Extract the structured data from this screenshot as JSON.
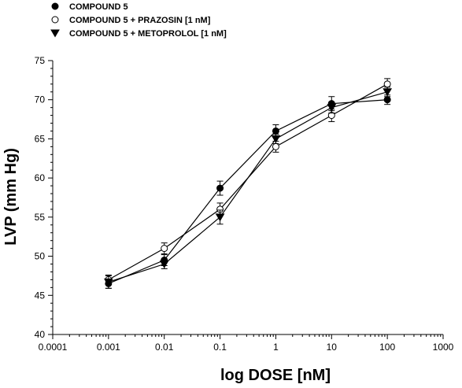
{
  "chart_data": {
    "type": "line",
    "xscale": "log",
    "x": [
      0.001,
      0.01,
      0.1,
      1,
      10,
      100
    ],
    "xlim": [
      0.0001,
      1000
    ],
    "xticks": [
      "0.0001",
      "0.001",
      "0.01",
      "0.1",
      "1",
      "10",
      "100",
      "1000"
    ],
    "ylim": [
      40,
      75
    ],
    "yticks": [
      "40",
      "45",
      "50",
      "55",
      "60",
      "65",
      "70",
      "75"
    ],
    "xlabel": "log DOSE [nM]",
    "ylabel": "LVP (mm Hg)",
    "legend_position": "top-left",
    "grid": false,
    "series": [
      {
        "name": "COMPOUND 5",
        "marker": "filled-circle",
        "values": [
          46.5,
          49.5,
          58.7,
          66.0,
          69.5,
          70.0
        ],
        "errors": [
          0.6,
          0.7,
          0.9,
          0.8,
          0.9,
          0.6
        ]
      },
      {
        "name": "COMPOUND 5 + PRAZOSIN [1 nM]",
        "marker": "open-circle",
        "values": [
          47.0,
          51.0,
          56.0,
          64.0,
          68.0,
          72.0
        ],
        "errors": [
          0.6,
          0.7,
          0.8,
          0.7,
          0.8,
          0.7
        ]
      },
      {
        "name": "COMPOUND 5 + METOPROLOL [1 nM]",
        "marker": "filled-triangle-down",
        "values": [
          46.7,
          49.0,
          55.0,
          65.0,
          69.0,
          71.0
        ],
        "errors": [
          0.8,
          0.6,
          0.9,
          0.6,
          0.7,
          0.6
        ]
      }
    ]
  }
}
